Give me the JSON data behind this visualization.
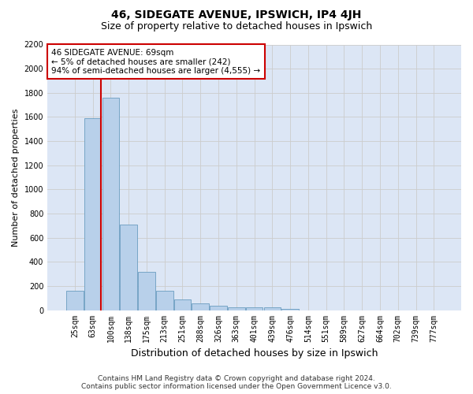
{
  "title": "46, SIDEGATE AVENUE, IPSWICH, IP4 4JH",
  "subtitle": "Size of property relative to detached houses in Ipswich",
  "xlabel": "Distribution of detached houses by size in Ipswich",
  "ylabel": "Number of detached properties",
  "categories": [
    "25sqm",
    "63sqm",
    "100sqm",
    "138sqm",
    "175sqm",
    "213sqm",
    "251sqm",
    "288sqm",
    "326sqm",
    "363sqm",
    "401sqm",
    "439sqm",
    "476sqm",
    "514sqm",
    "551sqm",
    "589sqm",
    "627sqm",
    "664sqm",
    "702sqm",
    "739sqm",
    "777sqm"
  ],
  "values": [
    160,
    1590,
    1760,
    710,
    320,
    160,
    90,
    55,
    35,
    25,
    20,
    20,
    10,
    0,
    0,
    0,
    0,
    0,
    0,
    0,
    0
  ],
  "bar_color": "#b8d0ea",
  "bar_edge_color": "#6a9cc0",
  "annotation_line1": "46 SIDEGATE AVENUE: 69sqm",
  "annotation_line2": "← 5% of detached houses are smaller (242)",
  "annotation_line3": "94% of semi-detached houses are larger (4,555) →",
  "annotation_box_color": "#ffffff",
  "annotation_box_edge_color": "#cc0000",
  "vline_color": "#cc0000",
  "ylim": [
    0,
    2200
  ],
  "yticks": [
    0,
    200,
    400,
    600,
    800,
    1000,
    1200,
    1400,
    1600,
    1800,
    2000,
    2200
  ],
  "grid_color": "#cccccc",
  "bg_color": "#dce6f5",
  "footer_line1": "Contains HM Land Registry data © Crown copyright and database right 2024.",
  "footer_line2": "Contains public sector information licensed under the Open Government Licence v3.0.",
  "title_fontsize": 10,
  "subtitle_fontsize": 9,
  "ylabel_fontsize": 8,
  "xlabel_fontsize": 9,
  "tick_fontsize": 7,
  "annotation_fontsize": 7.5,
  "footer_fontsize": 6.5,
  "vline_x_index": 1.475
}
